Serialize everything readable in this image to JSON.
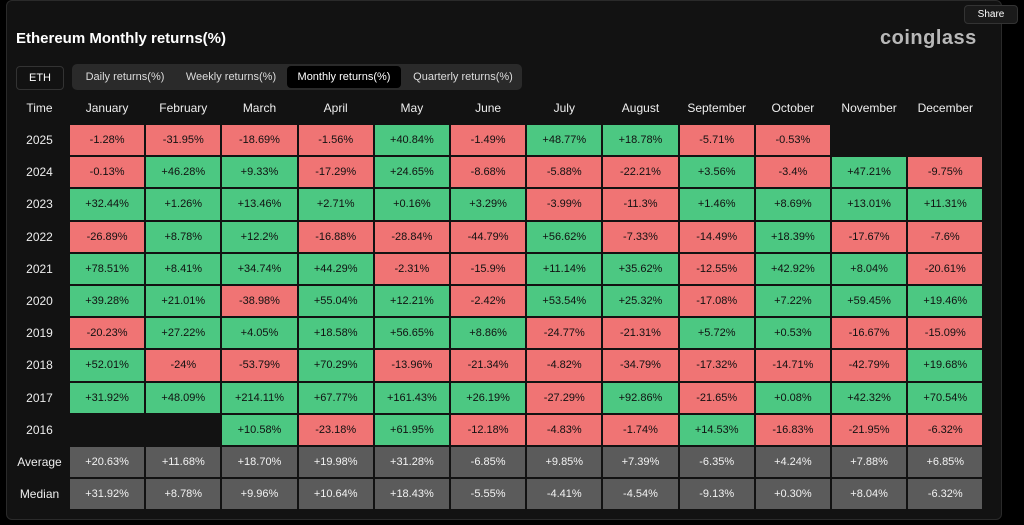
{
  "header": {
    "title": "Ethereum Monthly returns(%)",
    "logo": "coinglass",
    "share": "Share",
    "asset": "ETH",
    "tabs": [
      "Daily returns(%)",
      "Weekly returns(%)",
      "Monthly returns(%)",
      "Quarterly returns(%)"
    ],
    "active_tab": 2
  },
  "table": {
    "columns": [
      "Time",
      "January",
      "February",
      "March",
      "April",
      "May",
      "June",
      "July",
      "August",
      "September",
      "October",
      "November",
      "December"
    ],
    "rows": [
      [
        "2025",
        "-1.28%",
        "-31.95%",
        "-18.69%",
        "-1.56%",
        "+40.84%",
        "-1.49%",
        "+48.77%",
        "+18.78%",
        "-5.71%",
        "-0.53%",
        null,
        null
      ],
      [
        "2024",
        "-0.13%",
        "+46.28%",
        "+9.33%",
        "-17.29%",
        "+24.65%",
        "-8.68%",
        "-5.88%",
        "-22.21%",
        "+3.56%",
        "-3.4%",
        "+47.21%",
        "-9.75%"
      ],
      [
        "2023",
        "+32.44%",
        "+1.26%",
        "+13.46%",
        "+2.71%",
        "+0.16%",
        "+3.29%",
        "-3.99%",
        "-11.3%",
        "+1.46%",
        "+8.69%",
        "+13.01%",
        "+11.31%"
      ],
      [
        "2022",
        "-26.89%",
        "+8.78%",
        "+12.2%",
        "-16.88%",
        "-28.84%",
        "-44.79%",
        "+56.62%",
        "-7.33%",
        "-14.49%",
        "+18.39%",
        "-17.67%",
        "-7.6%"
      ],
      [
        "2021",
        "+78.51%",
        "+8.41%",
        "+34.74%",
        "+44.29%",
        "-2.31%",
        "-15.9%",
        "+11.14%",
        "+35.62%",
        "-12.55%",
        "+42.92%",
        "+8.04%",
        "-20.61%"
      ],
      [
        "2020",
        "+39.28%",
        "+21.01%",
        "-38.98%",
        "+55.04%",
        "+12.21%",
        "-2.42%",
        "+53.54%",
        "+25.32%",
        "-17.08%",
        "+7.22%",
        "+59.45%",
        "+19.46%"
      ],
      [
        "2019",
        "-20.23%",
        "+27.22%",
        "+4.05%",
        "+18.58%",
        "+56.65%",
        "+8.86%",
        "-24.77%",
        "-21.31%",
        "+5.72%",
        "+0.53%",
        "-16.67%",
        "-15.09%"
      ],
      [
        "2018",
        "+52.01%",
        "-24%",
        "-53.79%",
        "+70.29%",
        "-13.96%",
        "-21.34%",
        "-4.82%",
        "-34.79%",
        "-17.32%",
        "-14.71%",
        "-42.79%",
        "+19.68%"
      ],
      [
        "2017",
        "+31.92%",
        "+48.09%",
        "+214.11%",
        "+67.77%",
        "+161.43%",
        "+26.19%",
        "-27.29%",
        "+92.86%",
        "-21.65%",
        "+0.08%",
        "+42.32%",
        "+70.54%"
      ],
      [
        "2016",
        null,
        null,
        "+10.58%",
        "-23.18%",
        "+61.95%",
        "-12.18%",
        "-4.83%",
        "-1.74%",
        "+14.53%",
        "-16.83%",
        "-21.95%",
        "-6.32%"
      ]
    ],
    "summary_rows": [
      [
        "Average",
        "+20.63%",
        "+11.68%",
        "+18.70%",
        "+19.98%",
        "+31.28%",
        "-6.85%",
        "+9.85%",
        "+7.39%",
        "-6.35%",
        "+4.24%",
        "+7.88%",
        "+6.85%"
      ],
      [
        "Median",
        "+31.92%",
        "+8.78%",
        "+9.96%",
        "+10.64%",
        "+18.43%",
        "-5.55%",
        "-4.41%",
        "-4.54%",
        "-9.13%",
        "+0.30%",
        "+8.04%",
        "-6.32%"
      ]
    ]
  }
}
